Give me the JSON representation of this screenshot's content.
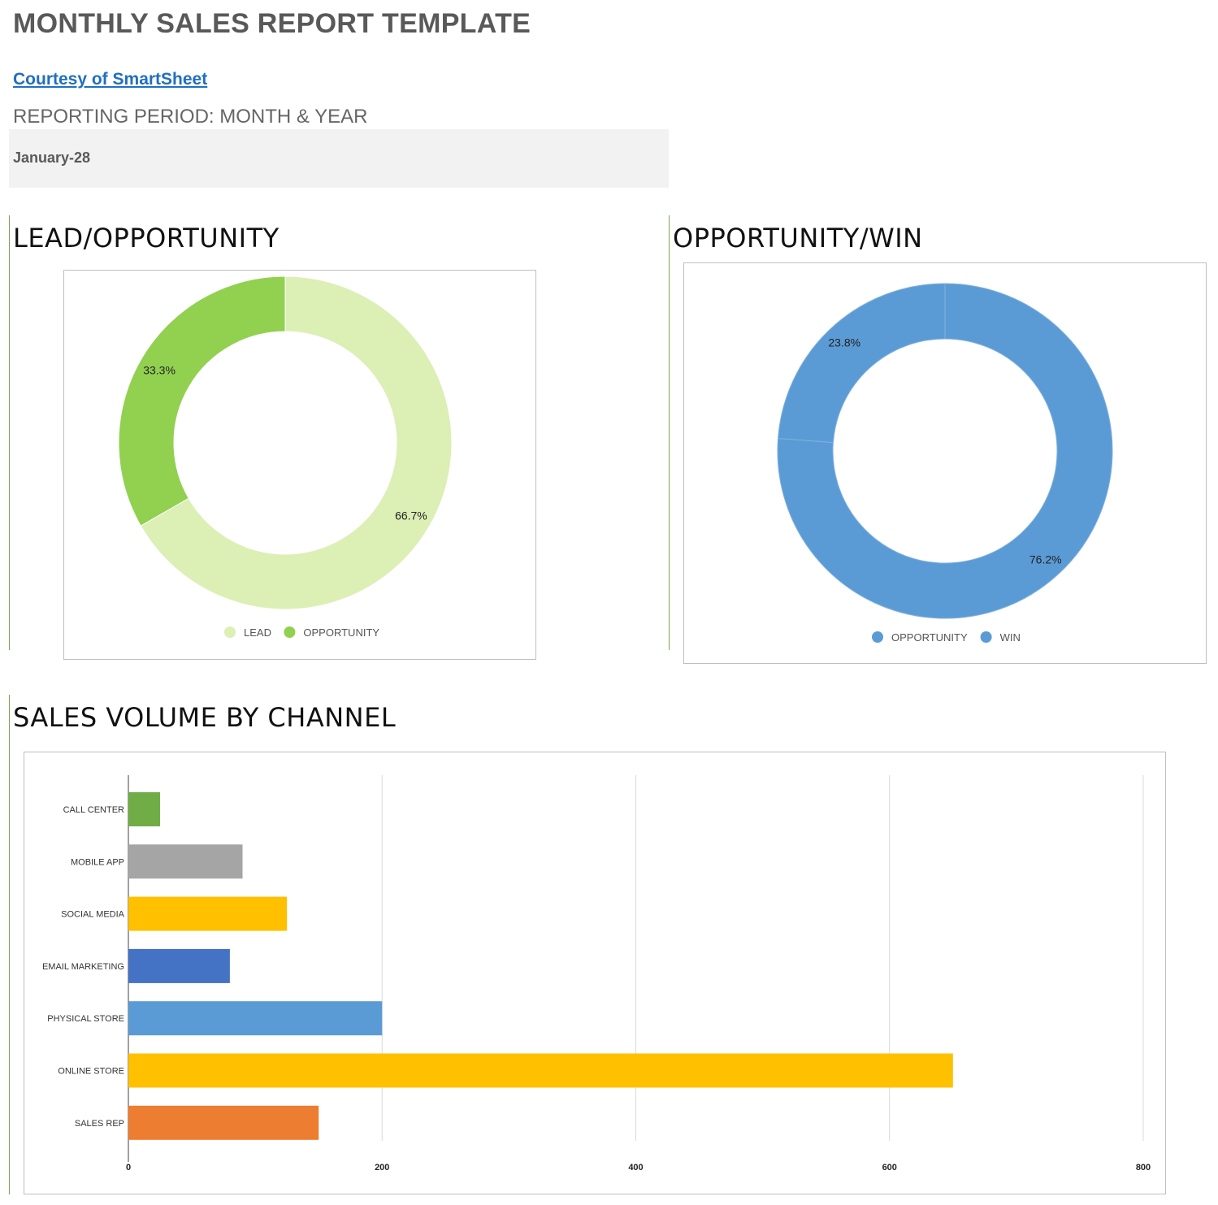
{
  "page": {
    "title": "MONTHLY SALES REPORT TEMPLATE",
    "courtesy_link": "Courtesy of SmartSheet",
    "reporting_period_label": "REPORTING PERIOD: MONTH & YEAR",
    "reporting_period_value": "January-28"
  },
  "sections": {
    "lead_opportunity_title": "LEAD/OPPORTUNITY",
    "opportunity_win_title": "OPPORTUNITY/WIN",
    "sales_volume_title": "SALES VOLUME BY CHANNEL"
  },
  "chart_data": [
    {
      "type": "pie",
      "variant": "donut",
      "title": "LEAD/OPPORTUNITY",
      "legend": "bottom",
      "slices": [
        {
          "name": "LEAD",
          "value": 66.7,
          "label": "66.7%",
          "color": "#dcefb5"
        },
        {
          "name": "OPPORTUNITY",
          "value": 33.3,
          "label": "33.3%",
          "color": "#92d050"
        }
      ]
    },
    {
      "type": "pie",
      "variant": "donut",
      "title": "OPPORTUNITY/WIN",
      "legend": "bottom",
      "slices": [
        {
          "name": "OPPORTUNITY",
          "value": 76.2,
          "label": "76.2%",
          "color": "#5b9bd5"
        },
        {
          "name": "WIN",
          "value": 23.8,
          "label": "23.8%",
          "color": "#5b9bd5"
        }
      ]
    },
    {
      "type": "bar",
      "orientation": "horizontal",
      "title": "SALES VOLUME BY CHANNEL",
      "categories": [
        "CALL CENTER",
        "MOBILE APP",
        "SOCIAL MEDIA",
        "EMAIL MARKETING",
        "PHYSICAL STORE",
        "ONLINE STORE",
        "SALES REP"
      ],
      "values": [
        25,
        90,
        125,
        80,
        200,
        650,
        150
      ],
      "colors": [
        "#70ad47",
        "#a5a5a5",
        "#ffc000",
        "#4472c4",
        "#5b9bd5",
        "#ffc000",
        "#ed7d31"
      ],
      "xlim": [
        0,
        800
      ],
      "xticks": [
        "0",
        "200",
        "400",
        "600",
        "800"
      ],
      "grid": true,
      "legend": "none"
    }
  ]
}
